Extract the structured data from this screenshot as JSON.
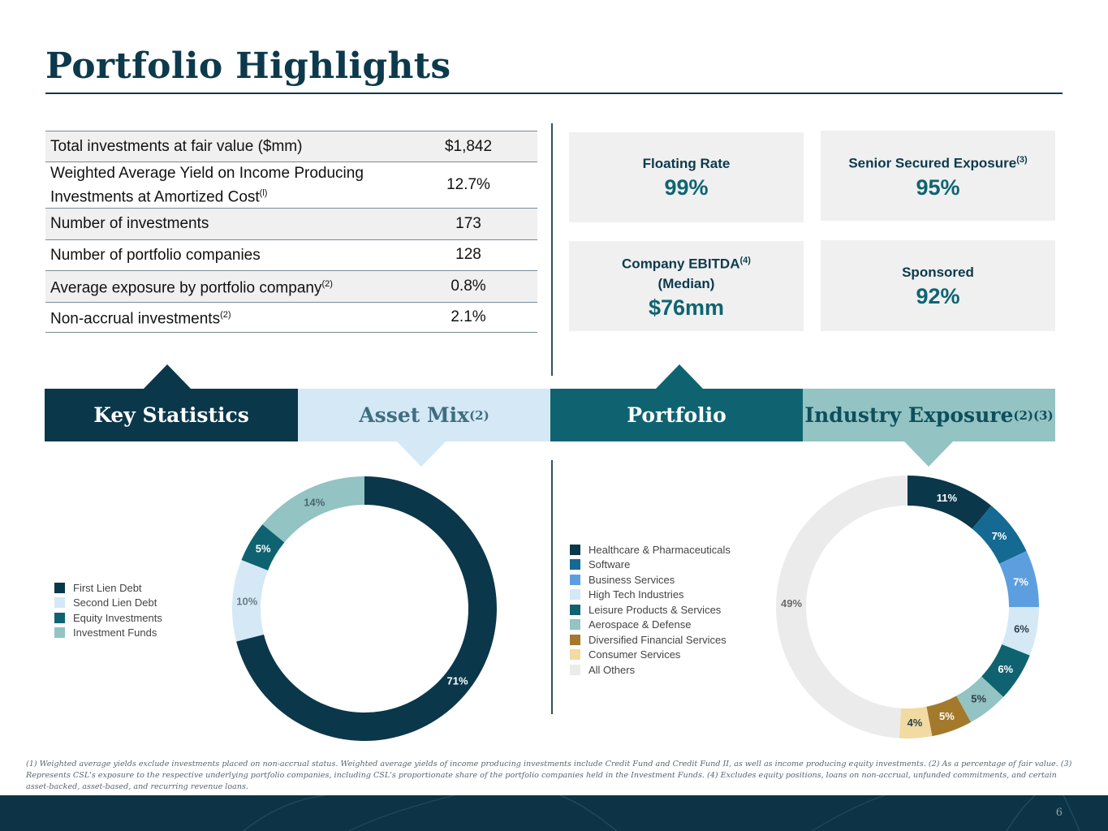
{
  "title": "Portfolio Highlights",
  "stats": [
    {
      "label": "Total investments at fair value ($mm)",
      "sup": "",
      "value": "$1,842"
    },
    {
      "label": "Weighted Average Yield on Income Producing Investments at Amortized Cost",
      "sup": "(l)",
      "value": "12.7%"
    },
    {
      "label": "Number of investments",
      "sup": "",
      "value": "173"
    },
    {
      "label": "Number of portfolio companies",
      "sup": "",
      "value": "128"
    },
    {
      "label": "Average exposure by portfolio company",
      "sup": "(2)",
      "value": "0.8%"
    },
    {
      "label": "Non-accrual investments",
      "sup": "(2)",
      "value": "2.1%"
    }
  ],
  "metrics": {
    "floating": {
      "label": "Floating Rate",
      "value": "99%"
    },
    "senior": {
      "label": "Senior Secured Exposure",
      "sup": "(3)",
      "value": "95%"
    },
    "ebitda": {
      "label": "Company EBITDA",
      "sup": "(4)",
      "label2": "(Median)",
      "value": "$76mm"
    },
    "sponsored": {
      "label": "Sponsored",
      "value": "92%"
    }
  },
  "tabs": {
    "key_statistics": "Key Statistics",
    "asset_mix": "Asset Mix",
    "asset_mix_sup": "(2)",
    "portfolio": "Portfolio",
    "industry_exposure": "Industry Exposure",
    "industry_exposure_sup": "(2)(3)"
  },
  "chart_data": [
    {
      "type": "pie",
      "categories": [
        "First Lien Debt",
        "Second Lien Debt",
        "Equity Investments",
        "Investment Funds"
      ],
      "values": [
        71,
        10,
        5,
        14
      ],
      "labels": [
        "71%",
        "10%",
        "5%",
        "14%"
      ],
      "colors": [
        "#0b374a",
        "#d4e8f6",
        "#0f6370",
        "#93c3c3"
      ],
      "label_colors": [
        "#ffffff",
        "#6b7b84",
        "#ffffff",
        "#4e6670"
      ],
      "legend_position": "left"
    },
    {
      "type": "pie",
      "categories": [
        "Healthcare & Pharmaceuticals",
        "Software",
        "Business Services",
        "High Tech Industries",
        "Leisure Products & Services",
        "Aerospace & Defense",
        "Diversified Financial Services",
        "Consumer Services",
        "All Others"
      ],
      "values": [
        11,
        7,
        7,
        6,
        6,
        5,
        5,
        4,
        49
      ],
      "labels": [
        "11%",
        "7%",
        "7%",
        "6%",
        "6%",
        "5%",
        "5%",
        "4%",
        "49%"
      ],
      "colors": [
        "#0b374a",
        "#146a92",
        "#5d9fde",
        "#d4e8f6",
        "#0f6370",
        "#93c3c3",
        "#a37a2c",
        "#f1dba2",
        "#ebebeb"
      ],
      "label_colors": [
        "#ffffff",
        "#ffffff",
        "#ffffff",
        "#2c3e48",
        "#ffffff",
        "#2c3e48",
        "#ffffff",
        "#2c3e48",
        "#6b6b6b"
      ],
      "legend_position": "left"
    }
  ],
  "footnote": "(1) Weighted average yields exclude investments placed on non-accrual status. Weighted average yields of income producing investments include Credit Fund and Credit Fund II, as well as income producing equity investments. (2) As a percentage of fair value. (3) Represents CSL's exposure to the respective underlying portfolio companies, including CSL's proportionate share of the portfolio companies held in the Investment Funds. (4) Excludes equity positions, loans on non-accrual, unfunded commitments, and certain asset-backed, asset-based, and recurring revenue loans.",
  "page_number": "6"
}
